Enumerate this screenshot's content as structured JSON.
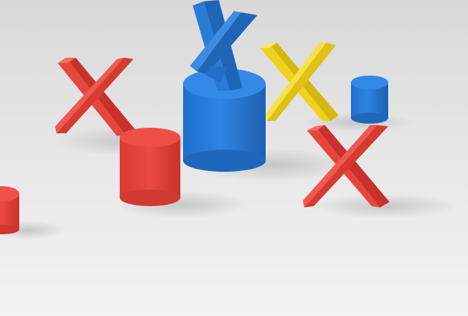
{
  "scene": {
    "colors": {
      "background_top": "#d9d9d9",
      "background_bottom": "#f4f4f4",
      "red": "#e8453c",
      "red_dark": "#c8322b",
      "red_light": "#f0594f",
      "blue": "#2a7ad6",
      "blue_dark": "#1f65b6",
      "blue_light": "#4a92e4",
      "yellow": "#f0d21c",
      "yellow_dark": "#d6b70f",
      "yellow_light": "#f6e04a",
      "shadow": "#c9c9c9"
    },
    "objects": [
      {
        "type": "x-shape",
        "color": "red"
      },
      {
        "type": "cylinder",
        "color": "red"
      },
      {
        "type": "cylinder",
        "color": "red"
      },
      {
        "type": "cylinder",
        "color": "blue"
      },
      {
        "type": "x-shape",
        "color": "blue"
      },
      {
        "type": "x-shape",
        "color": "yellow"
      },
      {
        "type": "cylinder",
        "color": "blue"
      },
      {
        "type": "x-shape",
        "color": "red"
      }
    ]
  }
}
